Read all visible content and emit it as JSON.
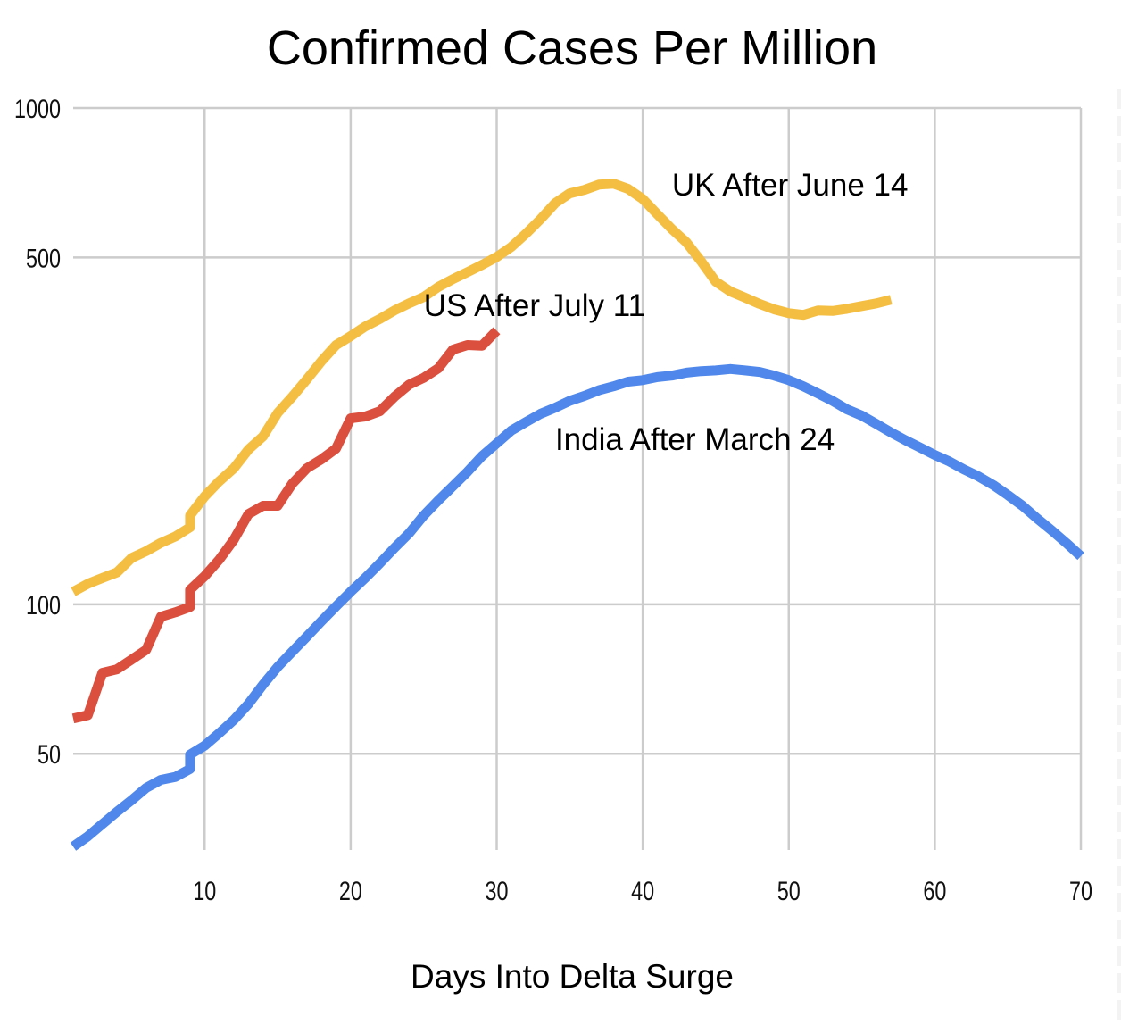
{
  "chart_data": {
    "type": "line",
    "title": "Confirmed Cases Per Million",
    "xlabel": "Days Into Delta Surge",
    "ylabel": "",
    "yscale": "log",
    "xlim": [
      1,
      70
    ],
    "ylim": [
      32,
      1000
    ],
    "grid": true,
    "legend": "none (inline annotations)",
    "xticks": [
      10,
      20,
      30,
      40,
      50,
      60,
      70
    ],
    "xtick_labels": [
      "10",
      "20",
      "30",
      "40",
      "50",
      "60",
      "70"
    ],
    "yticks": [
      50,
      100,
      500,
      1000
    ],
    "ytick_labels": [
      "50",
      "100",
      "500",
      "1000"
    ],
    "series": [
      {
        "name": "UK After June 14",
        "color": "#F4BE42",
        "x": [
          1,
          2,
          3,
          4,
          5,
          6,
          7,
          8,
          9,
          9,
          10,
          11,
          12,
          13,
          14,
          15,
          16,
          17,
          18,
          19,
          20,
          21,
          22,
          23,
          24,
          25,
          26,
          27,
          28,
          29,
          30,
          31,
          32,
          33,
          34,
          35,
          36,
          37,
          38,
          39,
          40,
          41,
          42,
          43,
          44,
          45,
          46,
          47,
          48,
          49,
          50,
          51,
          52,
          53,
          54,
          55,
          56,
          57
        ],
        "values": [
          106,
          110,
          113,
          116,
          124,
          128,
          133,
          137,
          143,
          151,
          165,
          177,
          188,
          205,
          218,
          243,
          262,
          284,
          309,
          333,
          347,
          363,
          376,
          391,
          404,
          416,
          436,
          452,
          467,
          483,
          501,
          525,
          558,
          597,
          643,
          673,
          684,
          701,
          704,
          687,
          656,
          611,
          570,
          536,
          491,
          447,
          427,
          415,
          403,
          393,
          386,
          383,
          391,
          390,
          394,
          399,
          404,
          411
        ]
      },
      {
        "name": "US After July 11",
        "color": "#DB4F3E",
        "x": [
          1,
          2,
          3,
          4,
          5,
          6,
          7,
          8,
          9,
          9,
          10,
          11,
          12,
          13,
          14,
          15,
          16,
          17,
          18,
          19,
          20,
          21,
          22,
          23,
          24,
          25,
          26,
          27,
          28,
          29,
          30
        ],
        "values": [
          58.9,
          59.8,
          72.8,
          74,
          77.4,
          81,
          94.4,
          96.4,
          98.8,
          107,
          114,
          123,
          135,
          152,
          158,
          158,
          175,
          188,
          196,
          206,
          237,
          239,
          245,
          262,
          277,
          286,
          299,
          326,
          333,
          332,
          356
        ]
      },
      {
        "name": "India After March 24",
        "color": "#4F88EA",
        "x": [
          1,
          2,
          3,
          4,
          5,
          6,
          7,
          8,
          9,
          9,
          10,
          11,
          12,
          13,
          14,
          15,
          16,
          17,
          18,
          19,
          20,
          21,
          22,
          23,
          24,
          25,
          26,
          27,
          28,
          29,
          30,
          31,
          32,
          33,
          34,
          35,
          36,
          37,
          38,
          39,
          40,
          41,
          42,
          43,
          44,
          45,
          46,
          47,
          48,
          49,
          50,
          51,
          52,
          53,
          54,
          55,
          56,
          57,
          58,
          59,
          60,
          61,
          62,
          63,
          64,
          65,
          66,
          67,
          68,
          69,
          70
        ],
        "values": [
          32.5,
          34.1,
          36.1,
          38.2,
          40.3,
          42.7,
          44.3,
          44.9,
          46.6,
          49.8,
          51.9,
          55,
          58.5,
          63,
          68.9,
          74.8,
          80.3,
          86.1,
          92.5,
          99.1,
          106,
          113,
          121,
          130,
          139,
          151,
          162,
          173,
          185,
          199,
          211,
          224,
          233,
          242,
          249,
          257,
          263,
          270,
          275,
          281,
          283,
          287,
          289,
          293,
          295,
          296,
          298,
          296,
          294,
          289,
          283,
          275,
          266,
          257,
          247,
          240,
          231,
          222,
          214,
          207,
          200,
          194,
          187,
          181,
          174,
          166,
          158,
          149,
          141,
          133,
          125
        ]
      }
    ],
    "annotations": [
      {
        "text": "UK After June 14",
        "series": "UK After June 14",
        "anchor_x": 42,
        "anchor_y": 700
      },
      {
        "text": "US After July 11",
        "series": "US After July 11",
        "anchor_x": 25,
        "anchor_y": 400
      },
      {
        "text": "India After March 24",
        "series": "India After March 24",
        "anchor_x": 34,
        "anchor_y": 215
      }
    ]
  }
}
